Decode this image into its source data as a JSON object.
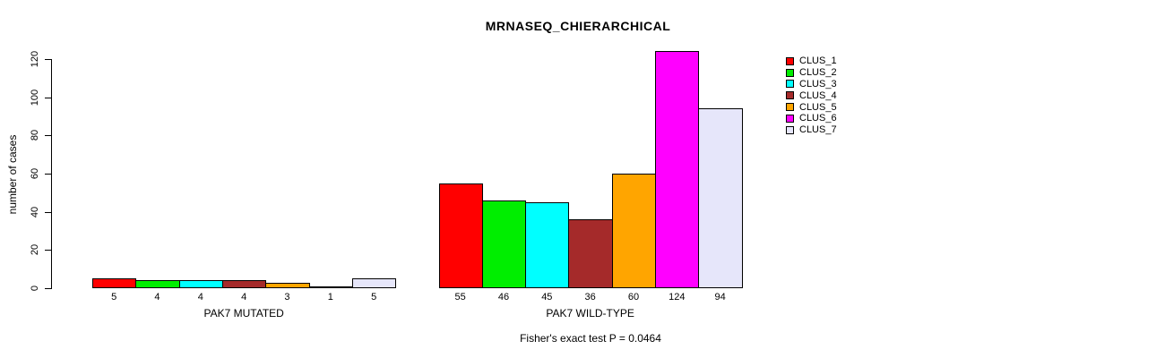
{
  "title": "MRNASEQ_CHIERARCHICAL",
  "annotation": "Fisher's exact test P = 0.0464",
  "y_axis": {
    "label": "number of cases",
    "ticks": [
      0,
      20,
      40,
      60,
      80,
      100,
      120
    ]
  },
  "legend": {
    "position": "right",
    "items": [
      {
        "label": "CLUS_1",
        "color": "#FF0000"
      },
      {
        "label": "CLUS_2",
        "color": "#00EE00"
      },
      {
        "label": "CLUS_3",
        "color": "#00FFFF"
      },
      {
        "label": "CLUS_4",
        "color": "#A52A2A"
      },
      {
        "label": "CLUS_5",
        "color": "#FFA500"
      },
      {
        "label": "CLUS_6",
        "color": "#FF00FF"
      },
      {
        "label": "CLUS_7",
        "color": "#E6E6FA"
      }
    ]
  },
  "chart_data": {
    "type": "bar",
    "title": "MRNASEQ_CHIERARCHICAL",
    "xlabel": "",
    "ylabel": "number of cases",
    "ylim": [
      0,
      124
    ],
    "grid": false,
    "legend_position": "top-right-outside",
    "series_labels": [
      "CLUS_1",
      "CLUS_2",
      "CLUS_3",
      "CLUS_4",
      "CLUS_5",
      "CLUS_6",
      "CLUS_7"
    ],
    "series_colors": [
      "#FF0000",
      "#00EE00",
      "#00FFFF",
      "#A52A2A",
      "#FFA500",
      "#FF00FF",
      "#E6E6FA"
    ],
    "groups": [
      {
        "label": "PAK7 MUTATED",
        "values": [
          5,
          4,
          4,
          4,
          3,
          1,
          5
        ]
      },
      {
        "label": "PAK7 WILD-TYPE",
        "values": [
          55,
          46,
          45,
          36,
          60,
          124,
          94
        ]
      }
    ],
    "bar_value_labels_shown": true,
    "annotation": "Fisher's exact test P = 0.0464"
  }
}
